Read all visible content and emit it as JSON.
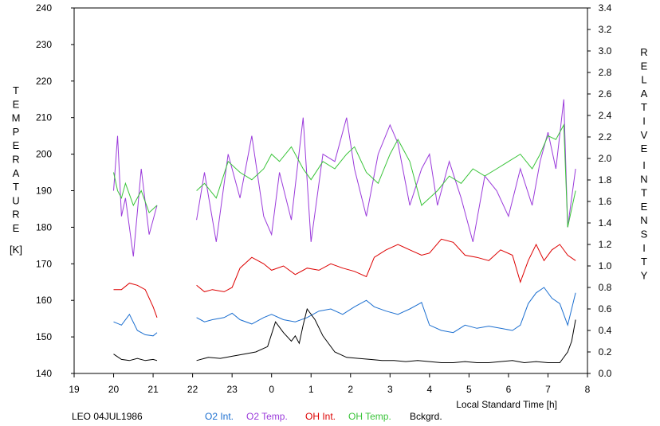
{
  "chart_data": {
    "type": "line",
    "title": "",
    "left_axis": {
      "label_letters": [
        "T",
        "E",
        "M",
        "P",
        "E",
        "R",
        "A",
        "T",
        "U",
        "R",
        "E"
      ],
      "unit": "[K]",
      "ylim": [
        140,
        240
      ],
      "ticks": [
        "140",
        "150",
        "160",
        "170",
        "180",
        "190",
        "200",
        "210",
        "220",
        "230",
        "240"
      ]
    },
    "right_axis": {
      "label_line1": [
        "R",
        "E",
        "L",
        "A",
        "T",
        "I",
        "V",
        "E"
      ],
      "label_line2": [
        "I",
        "N",
        "T",
        "E",
        "N",
        "S",
        "I",
        "T",
        "Y"
      ],
      "ylim": [
        0.0,
        3.4
      ],
      "ticks": [
        "0.0",
        "0.2",
        "0.4",
        "0.6",
        "0.8",
        "1.0",
        "1.2",
        "1.4",
        "1.6",
        "1.8",
        "2.0",
        "2.2",
        "2.4",
        "2.6",
        "2.8",
        "3.0",
        "3.2",
        "3.4"
      ]
    },
    "x_axis": {
      "label": "Local Standard Time [h]",
      "xlim": [
        19,
        32
      ],
      "tick_labels": [
        "19",
        "20",
        "21",
        "22",
        "23",
        "0",
        "1",
        "2",
        "3",
        "4",
        "5",
        "6",
        "7",
        "8"
      ]
    },
    "station": "LEO 04JUL1986",
    "legend": [
      {
        "label": "O2 Int.",
        "color": "#1c6fd0"
      },
      {
        "label": "O2 Temp.",
        "color": "#9b3bdb"
      },
      {
        "label": "OH Int.",
        "color": "#dd0000"
      },
      {
        "label": "OH Temp.",
        "color": "#3ac43a"
      },
      {
        "label": "Bckgrd.",
        "color": "#000000"
      }
    ],
    "series": [
      {
        "name": "O2 Temp.",
        "axis": "left",
        "color": "#9b3bdb",
        "x": [
          20.0,
          20.1,
          20.2,
          20.3,
          20.5,
          20.7,
          20.9,
          21.1,
          22.1,
          22.3,
          22.6,
          22.9,
          23.2,
          23.5,
          23.8,
          24.0,
          24.2,
          24.5,
          24.8,
          25.0,
          25.3,
          25.6,
          25.9,
          26.1,
          26.4,
          26.7,
          27.0,
          27.2,
          27.5,
          27.8,
          28.0,
          28.2,
          28.5,
          28.8,
          29.1,
          29.4,
          29.7,
          30.0,
          30.3,
          30.6,
          30.8,
          31.0,
          31.2,
          31.4,
          31.5,
          31.7
        ],
        "y": [
          190,
          205,
          183,
          188,
          172,
          196,
          178,
          186,
          182,
          195,
          176,
          200,
          188,
          205,
          183,
          178,
          195,
          182,
          210,
          176,
          200,
          198,
          210,
          196,
          183,
          200,
          208,
          203,
          186,
          196,
          200,
          186,
          198,
          188,
          176,
          194,
          190,
          183,
          196,
          186,
          198,
          206,
          196,
          215,
          180,
          196
        ]
      },
      {
        "name": "OH Temp.",
        "axis": "left",
        "color": "#3ac43a",
        "x": [
          20.0,
          20.1,
          20.2,
          20.3,
          20.5,
          20.7,
          20.9,
          21.1,
          22.1,
          22.3,
          22.6,
          22.9,
          23.2,
          23.5,
          23.8,
          24.0,
          24.2,
          24.5,
          24.8,
          25.0,
          25.3,
          25.6,
          25.9,
          26.1,
          26.4,
          26.7,
          27.0,
          27.2,
          27.5,
          27.8,
          28.0,
          28.2,
          28.5,
          28.8,
          29.1,
          29.4,
          29.7,
          30.0,
          30.3,
          30.6,
          30.8,
          31.0,
          31.2,
          31.4,
          31.5,
          31.7
        ],
        "y": [
          195,
          190,
          188,
          192,
          186,
          190,
          184,
          186,
          190,
          192,
          188,
          198,
          195,
          193,
          196,
          200,
          198,
          202,
          196,
          193,
          198,
          196,
          200,
          202,
          195,
          192,
          200,
          204,
          198,
          186,
          188,
          190,
          194,
          192,
          196,
          194,
          196,
          198,
          200,
          196,
          200,
          205,
          204,
          208,
          180,
          190
        ]
      },
      {
        "name": "OH Int.",
        "axis": "right",
        "color": "#dd0000",
        "x": [
          20.0,
          20.2,
          20.4,
          20.6,
          20.8,
          21.0,
          21.1,
          22.1,
          22.3,
          22.5,
          22.8,
          23.0,
          23.2,
          23.5,
          23.8,
          24.0,
          24.3,
          24.6,
          24.9,
          25.2,
          25.5,
          25.8,
          26.1,
          26.4,
          26.6,
          26.9,
          27.2,
          27.5,
          27.8,
          28.0,
          28.3,
          28.6,
          28.9,
          29.2,
          29.5,
          29.8,
          30.1,
          30.3,
          30.5,
          30.7,
          30.9,
          31.1,
          31.3,
          31.5,
          31.7
        ],
        "y": [
          0.78,
          0.78,
          0.84,
          0.82,
          0.78,
          0.62,
          0.52,
          0.82,
          0.76,
          0.78,
          0.76,
          0.8,
          0.98,
          1.08,
          1.02,
          0.96,
          1.0,
          0.92,
          0.98,
          0.96,
          1.02,
          0.98,
          0.95,
          0.9,
          1.08,
          1.15,
          1.2,
          1.15,
          1.1,
          1.12,
          1.25,
          1.22,
          1.1,
          1.08,
          1.05,
          1.15,
          1.1,
          0.85,
          1.05,
          1.2,
          1.05,
          1.15,
          1.2,
          1.1,
          1.05
        ]
      },
      {
        "name": "O2 Int.",
        "axis": "right",
        "color": "#1c6fd0",
        "x": [
          20.0,
          20.2,
          20.4,
          20.6,
          20.8,
          21.0,
          21.1,
          22.1,
          22.3,
          22.5,
          22.8,
          23.0,
          23.2,
          23.5,
          23.8,
          24.0,
          24.3,
          24.6,
          24.9,
          25.2,
          25.5,
          25.8,
          26.1,
          26.4,
          26.6,
          26.9,
          27.2,
          27.5,
          27.8,
          28.0,
          28.3,
          28.6,
          28.9,
          29.2,
          29.5,
          29.8,
          30.1,
          30.3,
          30.5,
          30.7,
          30.9,
          31.1,
          31.3,
          31.5,
          31.7
        ],
        "y": [
          0.48,
          0.45,
          0.55,
          0.4,
          0.36,
          0.35,
          0.38,
          0.52,
          0.48,
          0.5,
          0.52,
          0.56,
          0.5,
          0.46,
          0.52,
          0.55,
          0.5,
          0.48,
          0.52,
          0.58,
          0.6,
          0.55,
          0.62,
          0.68,
          0.62,
          0.58,
          0.55,
          0.6,
          0.66,
          0.45,
          0.4,
          0.38,
          0.45,
          0.42,
          0.44,
          0.42,
          0.4,
          0.45,
          0.65,
          0.75,
          0.8,
          0.7,
          0.65,
          0.45,
          0.75
        ]
      },
      {
        "name": "Bckgrd.",
        "axis": "right",
        "color": "#000000",
        "x": [
          20.0,
          20.2,
          20.4,
          20.6,
          20.8,
          21.0,
          21.1,
          22.1,
          22.4,
          22.7,
          23.0,
          23.3,
          23.6,
          23.9,
          24.1,
          24.3,
          24.5,
          24.6,
          24.7,
          24.8,
          24.9,
          25.1,
          25.3,
          25.6,
          25.9,
          26.2,
          26.5,
          26.8,
          27.1,
          27.4,
          27.7,
          28.0,
          28.3,
          28.6,
          28.9,
          29.2,
          29.5,
          29.8,
          30.1,
          30.4,
          30.7,
          31.0,
          31.3,
          31.5,
          31.6,
          31.7
        ],
        "y": [
          0.18,
          0.13,
          0.12,
          0.14,
          0.12,
          0.13,
          0.12,
          0.12,
          0.15,
          0.14,
          0.16,
          0.18,
          0.2,
          0.25,
          0.48,
          0.38,
          0.3,
          0.35,
          0.28,
          0.45,
          0.6,
          0.5,
          0.35,
          0.2,
          0.15,
          0.14,
          0.13,
          0.12,
          0.12,
          0.11,
          0.12,
          0.11,
          0.1,
          0.1,
          0.11,
          0.1,
          0.1,
          0.11,
          0.12,
          0.1,
          0.11,
          0.1,
          0.1,
          0.2,
          0.3,
          0.5
        ]
      }
    ]
  }
}
